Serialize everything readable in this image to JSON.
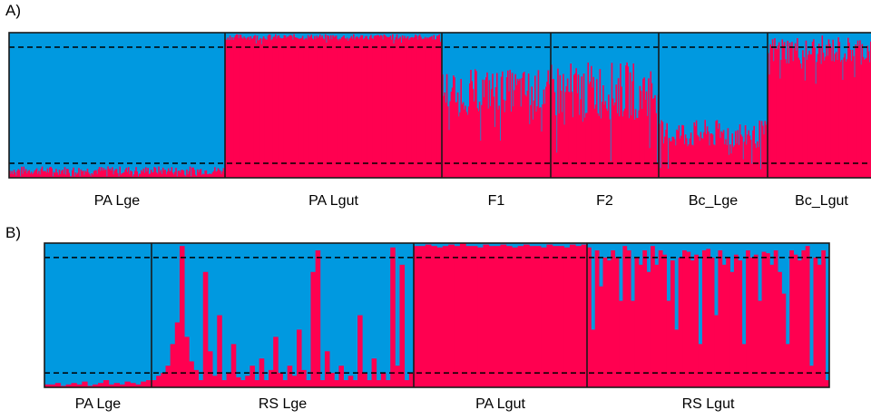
{
  "colors": {
    "membership_a": "#0099e0",
    "membership_b": "#ff0050",
    "border": "#1a1a1a"
  },
  "chart_data": [
    {
      "type": "bar",
      "panel_label": "A)",
      "stacked": true,
      "ylim": [
        0,
        1
      ],
      "thresholds": [
        0.1,
        0.9
      ],
      "groups": [
        {
          "label": "PA Lge",
          "n": 200,
          "mean": 0.05,
          "spread": 0.03
        },
        {
          "label": "PA Lgut",
          "n": 200,
          "mean": 0.97,
          "spread": 0.02
        },
        {
          "label": "F1",
          "n": 100,
          "mean": 0.6,
          "spread": 0.15
        },
        {
          "label": "F2",
          "n": 100,
          "mean": 0.6,
          "spread": 0.2
        },
        {
          "label": "Bc_Lge",
          "n": 100,
          "mean": 0.3,
          "spread": 0.1
        },
        {
          "label": "Bc_Lgut",
          "n": 100,
          "mean": 0.88,
          "spread": 0.1
        }
      ]
    },
    {
      "type": "bar",
      "panel_label": "B)",
      "stacked": true,
      "ylim": [
        0,
        1
      ],
      "thresholds": [
        0.1,
        0.9
      ],
      "groups": [
        {
          "label": "PA Lge",
          "values": [
            0.02,
            0.02,
            0.03,
            0.01,
            0.02,
            0.03,
            0.02,
            0.04,
            0.01,
            0.02,
            0.03,
            0.05,
            0.02,
            0.03,
            0.02,
            0.04,
            0.03,
            0.02,
            0.04,
            0.05
          ]
        },
        {
          "label": "RS Lge",
          "values": [
            0.05,
            0.08,
            0.1,
            0.15,
            0.3,
            0.45,
            0.98,
            0.35,
            0.18,
            0.12,
            0.05,
            0.8,
            0.25,
            0.08,
            0.5,
            0.05,
            0.1,
            0.3,
            0.07,
            0.05,
            0.08,
            0.15,
            0.05,
            0.2,
            0.05,
            0.12,
            0.35,
            0.1,
            0.05,
            0.15,
            0.08,
            0.4,
            0.12,
            0.05,
            0.8,
            0.95,
            0.05,
            0.25,
            0.1,
            0.05,
            0.15,
            0.05,
            0.08,
            0.05,
            0.5,
            0.1,
            0.05,
            0.2,
            0.05,
            0.1,
            0.05,
            0.97,
            0.15,
            0.85,
            0.05,
            0.1
          ]
        },
        {
          "label": "PA Lgut",
          "values": [
            0.98,
            0.98,
            0.99,
            0.98,
            0.97,
            0.98,
            0.99,
            0.98,
            1.0,
            0.98,
            0.98,
            0.97,
            0.99,
            0.98,
            0.98,
            0.99,
            0.98,
            0.97,
            0.98,
            0.99,
            0.98,
            0.98,
            0.97,
            0.99,
            0.98,
            0.98,
            0.97,
            0.99,
            0.98,
            0.99
          ]
        },
        {
          "label": "RS Lgut",
          "values": [
            0.97,
            0.4,
            0.95,
            0.7,
            0.9,
            0.88,
            0.95,
            0.9,
            0.6,
            0.98,
            0.95,
            0.6,
            0.9,
            0.85,
            0.95,
            0.8,
            0.98,
            0.85,
            0.95,
            0.92,
            0.6,
            0.88,
            0.4,
            0.9,
            0.95,
            0.94,
            0.88,
            0.92,
            0.3,
            0.95,
            0.96,
            0.9,
            0.5,
            0.95,
            0.85,
            0.9,
            0.8,
            0.92,
            0.88,
            0.3,
            0.95,
            0.9,
            0.92,
            0.6,
            0.94,
            0.93,
            0.85,
            0.95,
            0.8,
            0.65,
            0.3,
            0.95,
            0.92,
            0.88,
            0.95,
            0.98,
            0.15,
            0.9,
            0.85,
            0.95,
            0.05
          ]
        }
      ]
    }
  ]
}
